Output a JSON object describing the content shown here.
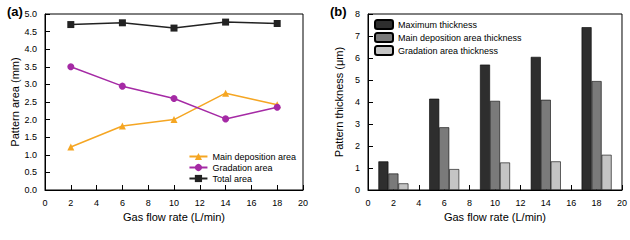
{
  "chart_data": [
    {
      "type": "line",
      "title": "(a)",
      "x_label": "Gas flow rate (L/min)",
      "y_label": "Pattern area (mm)",
      "x": [
        2,
        6,
        10,
        14,
        18
      ],
      "series": [
        {
          "name": "Main deposition area",
          "color": "#f5a623",
          "marker": "triangle",
          "values": [
            1.22,
            1.82,
            2.0,
            2.75,
            2.42
          ]
        },
        {
          "name": "Gradation area",
          "color": "#a52aa5",
          "marker": "circle",
          "values": [
            3.5,
            2.95,
            2.6,
            2.02,
            2.35
          ]
        },
        {
          "name": "Total area",
          "color": "#222222",
          "marker": "square",
          "values": [
            4.7,
            4.75,
            4.6,
            4.77,
            4.73
          ]
        }
      ],
      "xlim": [
        0,
        20
      ],
      "xticks": [
        0,
        2,
        4,
        6,
        8,
        10,
        12,
        14,
        16,
        18,
        20
      ],
      "ylim": [
        0,
        5
      ],
      "yticks": [
        {
          "value": 0,
          "label": "0.0"
        },
        0.5,
        {
          "value": 1,
          "label": "1.0"
        },
        1.5,
        {
          "value": 2,
          "label": "2.0"
        },
        2.5,
        {
          "value": 3,
          "label": "3.0"
        },
        3.5,
        {
          "value": 4,
          "label": "4.0"
        },
        4.5,
        {
          "value": 5,
          "label": "5.0"
        }
      ],
      "grid": false,
      "legend": "lower right"
    },
    {
      "type": "bar",
      "title": "(b)",
      "x_label": "Gas flow rate (L/min)",
      "y_label": "Pattern thickness (μm)",
      "x": [
        2,
        6,
        10,
        14,
        18
      ],
      "series": [
        {
          "name": "Maximum thickness",
          "color": "#2e2e2e",
          "values": [
            1.3,
            4.15,
            5.7,
            6.05,
            7.4
          ]
        },
        {
          "name": "Main deposition area thickness",
          "color": "#7a7a7a",
          "values": [
            0.75,
            2.85,
            4.05,
            4.1,
            4.95
          ]
        },
        {
          "name": "Gradation area thickness",
          "color": "#c4c4c4",
          "values": [
            0.3,
            0.95,
            1.25,
            1.3,
            1.6
          ]
        }
      ],
      "xlim": [
        0,
        20
      ],
      "xticks": [
        0,
        2,
        4,
        6,
        8,
        10,
        12,
        14,
        16,
        18,
        20
      ],
      "ylim": [
        0,
        8
      ],
      "yticks": [
        0,
        1,
        2,
        3,
        4,
        5,
        6,
        7,
        8
      ],
      "grid": false,
      "legend": "upper left"
    }
  ]
}
